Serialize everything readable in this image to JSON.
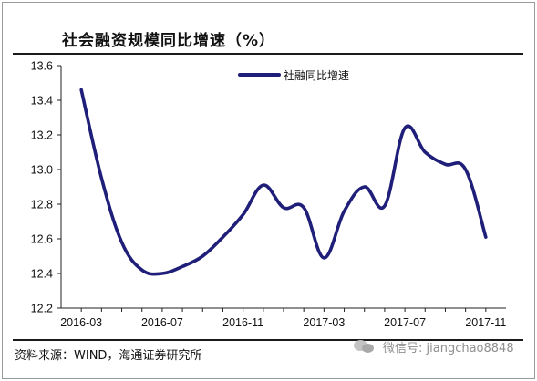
{
  "header": {
    "title": "社会融资规模同比增速（%）"
  },
  "footer": {
    "source": "资料来源：WIND，海通证券研究所",
    "watermark": "微信号: jiangchao8848"
  },
  "colors": {
    "series": "#1f1f7a",
    "axis": "#222222",
    "frame": "#9a9a9a"
  },
  "chart_data": {
    "type": "line",
    "title": "社会融资规模同比增速（%）",
    "xlabel": "",
    "ylabel": "",
    "ylim": [
      12.2,
      13.6
    ],
    "yticks": [
      "12.2",
      "12.4",
      "12.6",
      "12.8",
      "13.0",
      "13.2",
      "13.4",
      "13.6"
    ],
    "xticks": [
      "2016-03",
      "2016-07",
      "2016-11",
      "2017-03",
      "2017-07",
      "2017-11"
    ],
    "grid": false,
    "legend": "top-center",
    "series": [
      {
        "name": "社融同比增速",
        "x": [
          "2016-03",
          "2016-04",
          "2016-05",
          "2016-06",
          "2016-07",
          "2016-08",
          "2016-09",
          "2016-10",
          "2016-11",
          "2016-12",
          "2017-01",
          "2017-02",
          "2017-03",
          "2017-04",
          "2017-05",
          "2017-06",
          "2017-07",
          "2017-08",
          "2017-09",
          "2017-10",
          "2017-11"
        ],
        "values": [
          13.46,
          12.95,
          12.58,
          12.42,
          12.4,
          12.44,
          12.5,
          12.61,
          12.74,
          12.91,
          12.78,
          12.78,
          12.49,
          12.76,
          12.9,
          12.79,
          13.24,
          13.1,
          13.03,
          13.0,
          12.61
        ]
      }
    ]
  }
}
